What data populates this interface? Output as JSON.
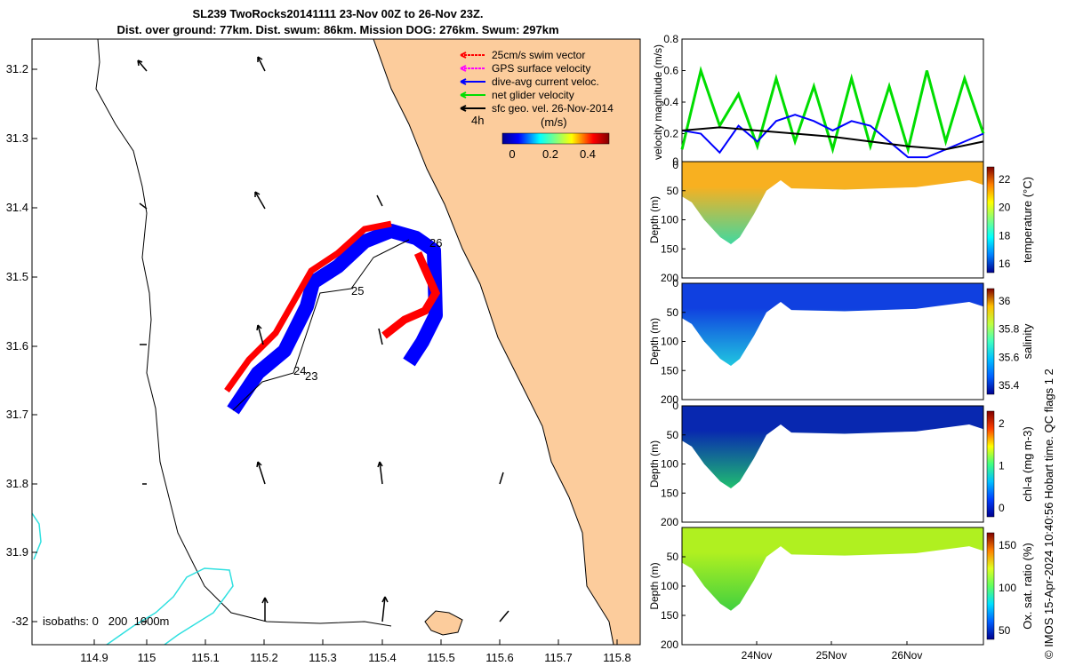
{
  "header": {
    "title_line1": "SL239 TwoRocks20141111 23-Nov 00Z to 26-Nov 23Z.",
    "title_line2": "Dist. over ground: 77km. Dist. swum: 86km. Mission DOG: 276km. Swum: 297km"
  },
  "map": {
    "lat_ticks": [
      "31.2",
      "31.3",
      "31.4",
      "31.5",
      "31.6",
      "31.7",
      "31.8",
      "31.9",
      "-32"
    ],
    "lon_ticks": [
      "114.9",
      "115",
      "115.1",
      "115.2",
      "115.3",
      "115.4",
      "115.5",
      "115.6",
      "115.7",
      "115.8"
    ],
    "legend": [
      {
        "label": "25cm/s swim vector",
        "color": "#ff0000"
      },
      {
        "label": "GPS surface velocity",
        "color": "#ff00ff"
      },
      {
        "label": "dive-avg current veloc.",
        "color": "#0000ff"
      },
      {
        "label": "net glider velocity",
        "color": "#00dd00"
      },
      {
        "label": "sfc geo. vel. 26-Nov-2014",
        "color": "#000000"
      }
    ],
    "time_label": "4h",
    "colorbar_title": "(m/s)",
    "colorbar_ticks": [
      "0",
      "0.2",
      "0.4"
    ],
    "day_labels": [
      "23",
      "24",
      "25",
      "26"
    ],
    "isobath_label": "isobaths: 0   200  1000m",
    "colors": {
      "land": "#fccc9c",
      "isobath": "#30e0e0",
      "track_blue": "#0000ff",
      "track_red": "#ff0000"
    }
  },
  "chart_data": [
    {
      "type": "line",
      "ylabel": "velocity magnitude (m/s)",
      "ylim": [
        0,
        0.8
      ],
      "yticks": [
        "0",
        "0.2",
        "0.4",
        "0.6",
        "0.8"
      ],
      "series": [
        {
          "name": "net glider velocity",
          "color": "#00dd00",
          "x_days": [
            0,
            0.25,
            0.5,
            0.75,
            1,
            1.25,
            1.5,
            1.75,
            2,
            2.25,
            2.5,
            2.75,
            3,
            3.25,
            3.5,
            3.75,
            4
          ],
          "values": [
            0.1,
            0.6,
            0.25,
            0.45,
            0.12,
            0.55,
            0.15,
            0.5,
            0.1,
            0.55,
            0.12,
            0.5,
            0.1,
            0.6,
            0.15,
            0.55,
            0.2
          ]
        },
        {
          "name": "dive-avg current veloc.",
          "color": "#0000ff",
          "x_days": [
            0,
            0.25,
            0.5,
            0.75,
            1,
            1.25,
            1.5,
            1.75,
            2,
            2.25,
            2.5,
            2.75,
            3,
            3.25,
            3.5,
            3.75,
            4
          ],
          "values": [
            0.22,
            0.2,
            0.08,
            0.25,
            0.15,
            0.28,
            0.32,
            0.28,
            0.22,
            0.28,
            0.25,
            0.15,
            0.05,
            0.05,
            0.1,
            0.15,
            0.2
          ]
        },
        {
          "name": "sfc geo. vel.",
          "color": "#000000",
          "x_days": [
            0,
            0.5,
            1,
            1.5,
            2,
            2.5,
            3,
            3.5,
            4
          ],
          "values": [
            0.22,
            0.24,
            0.22,
            0.2,
            0.18,
            0.15,
            0.12,
            0.1,
            0.15
          ]
        }
      ]
    },
    {
      "type": "heatmap",
      "ylabel": "Depth (m)",
      "clabel": "temperature (°C)",
      "cticks": [
        "16",
        "18",
        "20",
        "22"
      ],
      "ylim": [
        0,
        200
      ],
      "yticks": [
        "0",
        "50",
        "100",
        "150",
        "200"
      ]
    },
    {
      "type": "heatmap",
      "ylabel": "Depth (m)",
      "clabel": "salinity",
      "cticks": [
        "35.4",
        "35.6",
        "35.8",
        "36"
      ],
      "ylim": [
        0,
        200
      ],
      "yticks": [
        "0",
        "50",
        "100",
        "150",
        "200"
      ]
    },
    {
      "type": "heatmap",
      "ylabel": "Depth (m)",
      "clabel": "chl-a (mg m-3)",
      "cticks": [
        "0",
        "1",
        "2"
      ],
      "ylim": [
        0,
        200
      ],
      "yticks": [
        "0",
        "50",
        "100",
        "150",
        "200"
      ]
    },
    {
      "type": "heatmap",
      "ylabel": "Depth (m)",
      "clabel": "Ox. sat. ratio (%)",
      "cticks": [
        "50",
        "100",
        "150"
      ],
      "ylim": [
        0,
        200
      ],
      "yticks": [
        "50",
        "100",
        "150",
        "200"
      ],
      "xticks": [
        "24Nov",
        "25Nov",
        "26Nov"
      ]
    }
  ],
  "footer": {
    "copyright": "© IMOS 15-Apr-2024 10:40:56 Hobart time. QC flags 1  2"
  }
}
